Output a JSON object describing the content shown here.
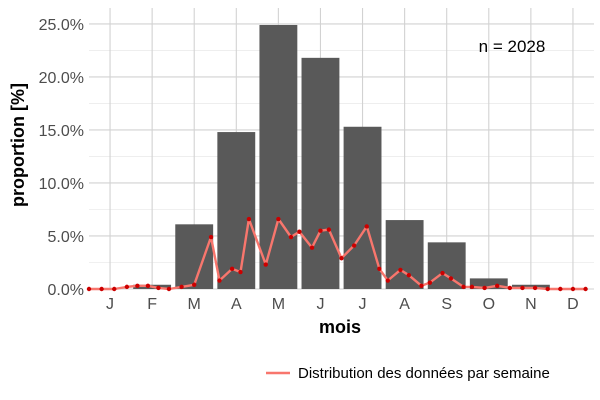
{
  "chart_data": {
    "type": "bar",
    "categories": [
      "J",
      "F",
      "M",
      "A",
      "M",
      "J",
      "J",
      "A",
      "S",
      "O",
      "N",
      "D"
    ],
    "values": [
      0.0,
      0.4,
      6.1,
      14.8,
      24.9,
      21.8,
      15.3,
      6.5,
      4.4,
      1.0,
      0.4,
      0.0
    ],
    "ylim": [
      0,
      26.5
    ],
    "yticks": [
      0,
      5,
      10,
      15,
      20,
      25
    ],
    "ytick_labels": [
      "0.0%",
      "5.0%",
      "10.0%",
      "15.0%",
      "20.0%",
      "25.0%"
    ],
    "xlabel": "mois",
    "ylabel": "proportion [%]",
    "annotation": "n = 2028",
    "grid": true,
    "legend_position": "bottom",
    "bar_color": "#595959",
    "line_series": {
      "name": "Distribution des données par semaine",
      "color": "#f8766d",
      "point_color": "#cc0000",
      "x": [
        0.5,
        0.8,
        1.1,
        1.4,
        1.65,
        1.9,
        2.15,
        2.4,
        2.7,
        3.0,
        3.4,
        3.6,
        3.9,
        4.1,
        4.3,
        4.7,
        5.0,
        5.3,
        5.5,
        5.8,
        6.0,
        6.2,
        6.5,
        6.8,
        7.1,
        7.4,
        7.6,
        7.9,
        8.1,
        8.4,
        8.6,
        8.9,
        9.1,
        9.4,
        9.6,
        9.9,
        10.2,
        10.5,
        10.8,
        11.1,
        11.4,
        11.7,
        12.0,
        12.3
      ],
      "y": [
        0.0,
        0.0,
        0.0,
        0.2,
        0.3,
        0.3,
        0.1,
        0.0,
        0.2,
        0.4,
        4.9,
        0.8,
        1.9,
        1.6,
        6.6,
        2.3,
        6.6,
        4.9,
        5.4,
        3.9,
        5.5,
        5.6,
        2.9,
        4.1,
        5.9,
        1.9,
        0.8,
        1.8,
        1.3,
        0.3,
        0.6,
        1.5,
        1.0,
        0.2,
        0.2,
        0.1,
        0.3,
        0.1,
        0.1,
        0.1,
        0.0,
        0.0,
        0.0,
        0.0
      ]
    }
  }
}
